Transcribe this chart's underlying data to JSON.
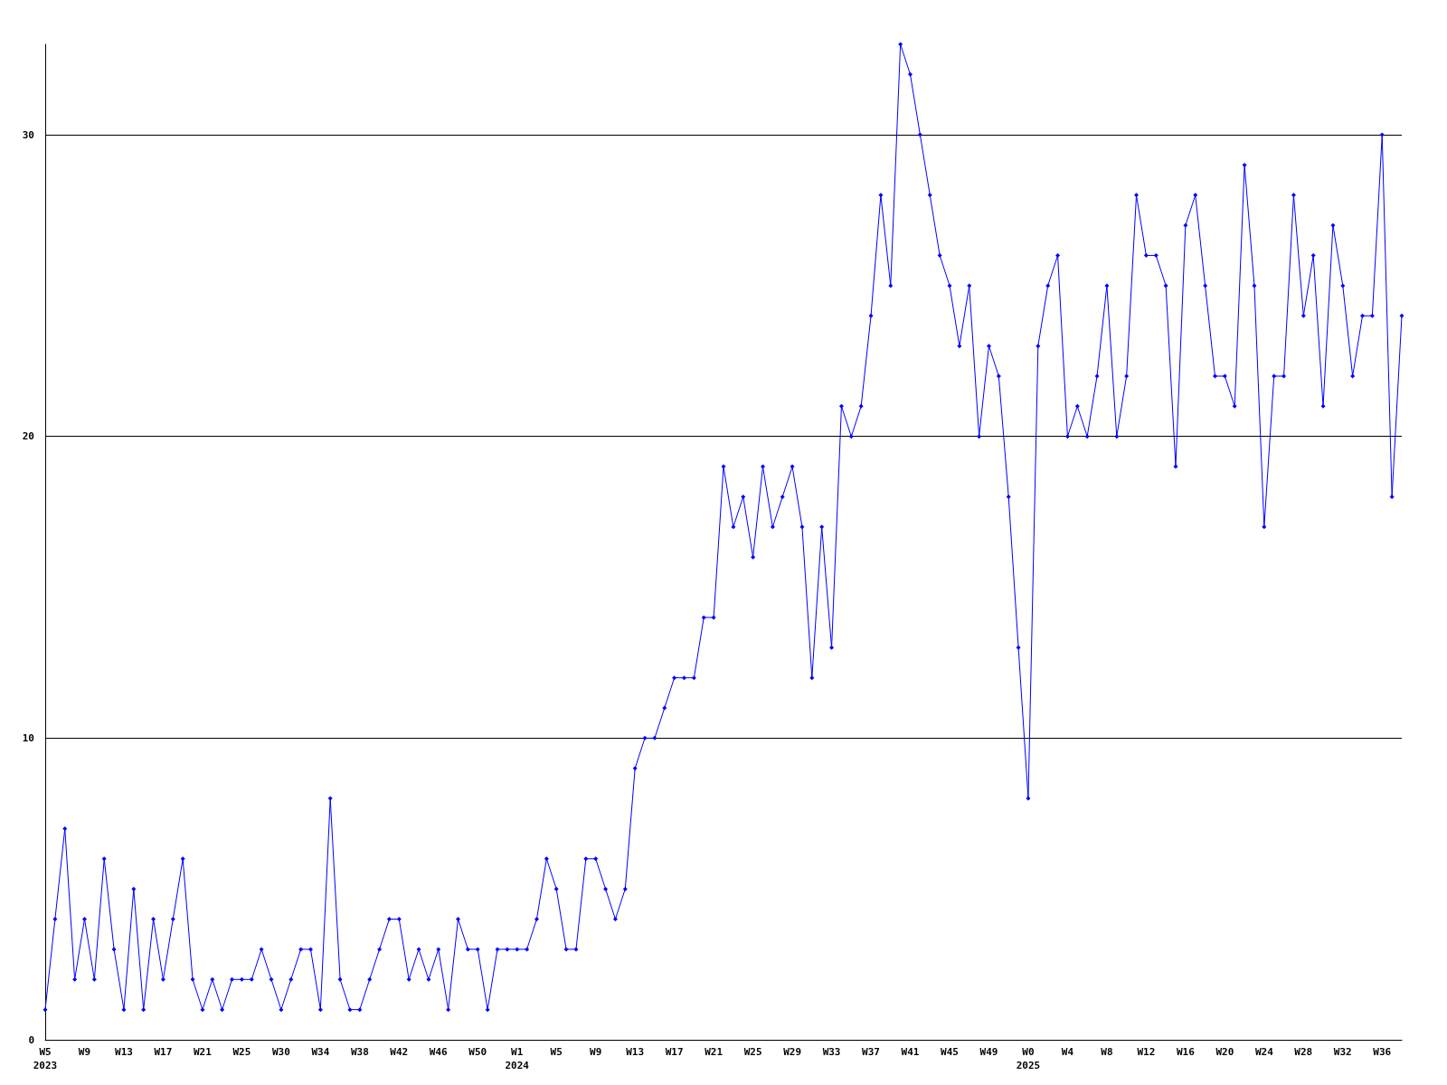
{
  "chart_data": {
    "type": "line",
    "categories": [
      "W5\n2023",
      null,
      null,
      null,
      "W9",
      null,
      null,
      null,
      "W13",
      null,
      null,
      null,
      "W17",
      null,
      null,
      null,
      "W21",
      null,
      null,
      null,
      "W25",
      null,
      null,
      null,
      "W30",
      null,
      null,
      null,
      "W34",
      null,
      null,
      null,
      "W38",
      null,
      null,
      null,
      "W42",
      null,
      null,
      null,
      "W46",
      null,
      null,
      null,
      "W50",
      null,
      null,
      null,
      "W1\n2024",
      null,
      null,
      null,
      "W5",
      null,
      null,
      null,
      "W9",
      null,
      null,
      null,
      "W13",
      null,
      null,
      null,
      "W17",
      null,
      null,
      null,
      "W21",
      null,
      null,
      null,
      "W25",
      null,
      null,
      null,
      "W29",
      null,
      null,
      null,
      "W33",
      null,
      null,
      null,
      "W37",
      null,
      null,
      null,
      "W41",
      null,
      null,
      null,
      "W45",
      null,
      null,
      null,
      "W49",
      null,
      null,
      null,
      "W0\n2025",
      null,
      null,
      null,
      "W4",
      null,
      null,
      null,
      "W8",
      null,
      null,
      null,
      "W12",
      null,
      null,
      null,
      "W16",
      null,
      null,
      null,
      "W20",
      null,
      null,
      null,
      "W24",
      null,
      null,
      null,
      "W28",
      null,
      null,
      null,
      "W32",
      null,
      null,
      null,
      "W36",
      null,
      null
    ],
    "series": [
      {
        "color": "#0000ff",
        "values": [
          1,
          4,
          7,
          2,
          4,
          2,
          6,
          3,
          1,
          5,
          1,
          4,
          2,
          4,
          6,
          2,
          1,
          2,
          1,
          2,
          2,
          2,
          3,
          2,
          1,
          2,
          3,
          3,
          1,
          8,
          2,
          1,
          1,
          2,
          3,
          4,
          4,
          2,
          3,
          2,
          3,
          1,
          4,
          3,
          3,
          1,
          3,
          3,
          3,
          3,
          4,
          6,
          5,
          3,
          3,
          6,
          6,
          5,
          4,
          5,
          9,
          10,
          10,
          11,
          12,
          12,
          12,
          14,
          14,
          19,
          17,
          18,
          16,
          19,
          17,
          18,
          19,
          17,
          12,
          17,
          13,
          21,
          20,
          21,
          24,
          28,
          25,
          33,
          32,
          30,
          28,
          26,
          25,
          23,
          25,
          20,
          23,
          22,
          18,
          13,
          8,
          23,
          25,
          26,
          20,
          21,
          20,
          22,
          25,
          20,
          22,
          28,
          26,
          26,
          25,
          19,
          27,
          28,
          25,
          22,
          22,
          21,
          29,
          25,
          17,
          22,
          22,
          28,
          24,
          26,
          21,
          27,
          25,
          22,
          24,
          24,
          30,
          18,
          24
        ]
      }
    ],
    "ylim": [
      0,
      33
    ],
    "yticks": [
      0,
      10,
      20,
      30
    ],
    "grid": "y",
    "marker": "diamond",
    "line_style": "solid"
  }
}
